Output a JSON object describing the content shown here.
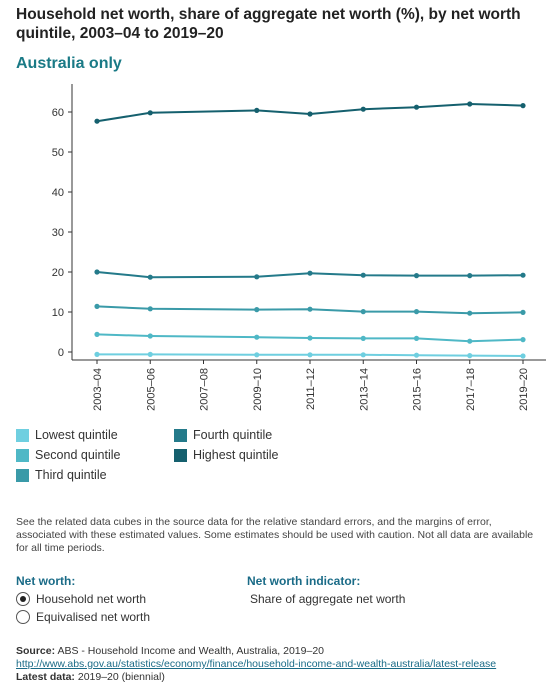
{
  "header": {
    "title": "Household net worth, share of aggregate net worth (%), by net worth quintile, 2003–04 to 2019–20",
    "subtitle": "Australia only"
  },
  "chart_data": {
    "type": "line",
    "categories": [
      "2003–04",
      "2005–06",
      "2007–08",
      "2009–10",
      "2011–12",
      "2013–14",
      "2015–16",
      "2017–18",
      "2019–20"
    ],
    "y_ticks": [
      "0",
      "10",
      "20",
      "30",
      "40",
      "50",
      "60"
    ],
    "ylim": [
      0,
      67
    ],
    "grid": false,
    "legend_placement": "bottom",
    "series": [
      {
        "name": "Lowest quintile",
        "color": "#6fcfe0",
        "values": [
          -0.6,
          -0.6,
          null,
          -0.7,
          -0.7,
          -0.7,
          -0.8,
          -0.9,
          -1.0
        ]
      },
      {
        "name": "Second quintile",
        "color": "#4fb8c6",
        "values": [
          4.4,
          4.0,
          null,
          3.7,
          3.5,
          3.4,
          3.4,
          2.7,
          3.1
        ]
      },
      {
        "name": "Third quintile",
        "color": "#3a9aa8",
        "values": [
          11.4,
          10.8,
          null,
          10.6,
          10.7,
          10.1,
          10.1,
          9.7,
          9.9
        ]
      },
      {
        "name": "Fourth quintile",
        "color": "#247a8a",
        "values": [
          20.0,
          18.7,
          null,
          18.8,
          19.7,
          19.2,
          19.1,
          19.1,
          19.2
        ]
      },
      {
        "name": "Highest quintile",
        "color": "#15606e",
        "values": [
          57.7,
          59.8,
          null,
          60.4,
          59.5,
          60.7,
          61.2,
          62.0,
          61.6
        ]
      }
    ]
  },
  "legend": {
    "items": [
      {
        "label": "Lowest quintile",
        "color": "#6fcfe0"
      },
      {
        "label": "Second quintile",
        "color": "#4fb8c6"
      },
      {
        "label": "Third quintile",
        "color": "#3a9aa8"
      },
      {
        "label": "Fourth quintile",
        "color": "#247a8a"
      },
      {
        "label": "Highest quintile",
        "color": "#15606e"
      }
    ]
  },
  "note": "See the related data cubes in the source data for the relative standard errors, and the margins of error, associated with these estimated values. Some estimates should be used with caution. Not all data are available for all time periods.",
  "net_worth": {
    "label": "Net worth:",
    "options": [
      {
        "label": "Household net worth",
        "selected": true
      },
      {
        "label": "Equivalised net worth",
        "selected": false
      }
    ]
  },
  "indicator": {
    "label": "Net worth indicator:",
    "value": "Share of aggregate net worth"
  },
  "source": {
    "label": "Source:",
    "text": "ABS - Household Income and Wealth, Australia, 2019–20",
    "url": "http://www.abs.gov.au/statistics/economy/finance/household-income-and-wealth-australia/latest-release",
    "latest_label": "Latest data:",
    "latest_value": "2019–20 (biennial)"
  }
}
